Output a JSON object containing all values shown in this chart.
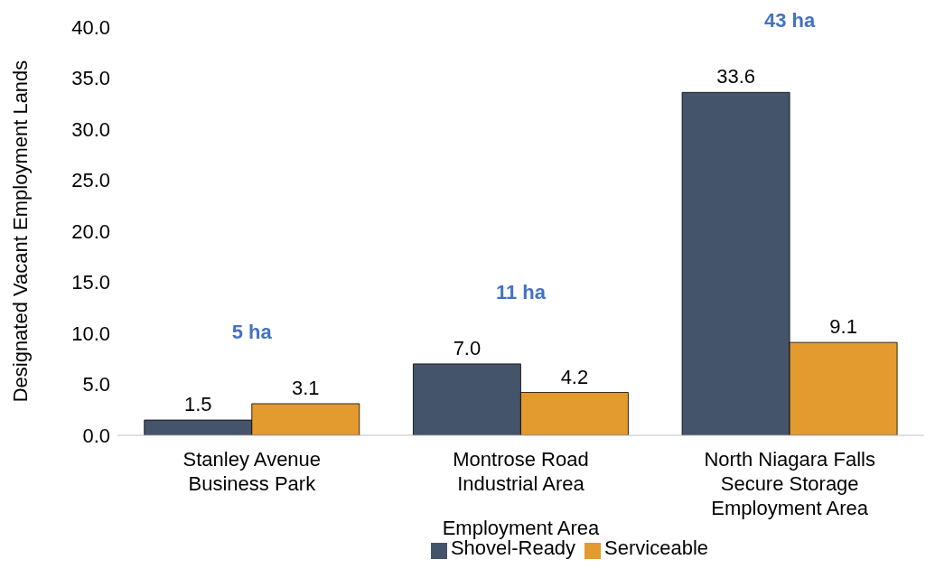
{
  "chart_data": {
    "type": "bar",
    "categories": [
      "Stanley Avenue Business Park",
      "Montrose Road Industrial Area",
      "North Niagara Falls Secure Storage Employment Area"
    ],
    "series": [
      {
        "name": "Shovel-Ready",
        "color": "#44546a",
        "values": [
          1.5,
          7.0,
          33.6
        ],
        "value_labels": [
          "1.5",
          "7.0",
          "33.6"
        ]
      },
      {
        "name": "Serviceable",
        "color": "#e39a2f",
        "values": [
          3.1,
          4.2,
          9.1
        ],
        "value_labels": [
          "3.1",
          "4.2",
          "9.1"
        ]
      }
    ],
    "xlabel": "Employment Area",
    "ylabel": "Designated Vacant Employment Lands",
    "ylim": [
      0,
      40
    ],
    "yticks": [
      {
        "value": 0,
        "label": "0.0"
      },
      {
        "value": 5,
        "label": "5.0"
      },
      {
        "value": 10,
        "label": "10.0"
      },
      {
        "value": 15,
        "label": "15.0"
      },
      {
        "value": 20,
        "label": "20.0"
      },
      {
        "value": 25,
        "label": "25.0"
      },
      {
        "value": 30,
        "label": "30.0"
      },
      {
        "value": 35,
        "label": "35.0"
      },
      {
        "value": 40,
        "label": "40.0"
      }
    ],
    "annotations": [
      "5 ha",
      "11 ha",
      "43 ha"
    ],
    "grid": false,
    "legend": "bottom"
  }
}
